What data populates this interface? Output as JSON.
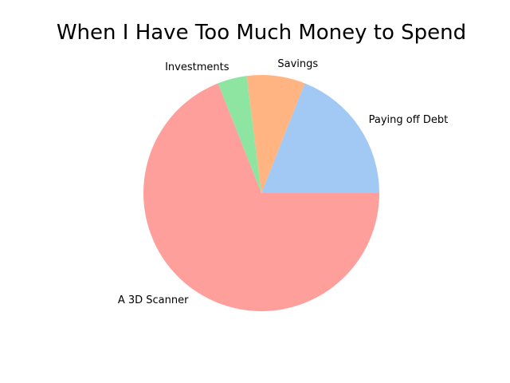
{
  "chart_data": {
    "type": "pie",
    "title": "When I Have Too Much Money to Spend",
    "start_angle_deg": 0,
    "counterclockwise": true,
    "legend": "none",
    "slices": [
      {
        "label": "Paying off Debt",
        "value": 19,
        "color": "#a1c9f4"
      },
      {
        "label": "Savings",
        "value": 8,
        "color": "#ffb482"
      },
      {
        "label": "Investments",
        "value": 4,
        "color": "#8de5a1"
      },
      {
        "label": "A 3D Scanner",
        "value": 69,
        "color": "#ff9f9b"
      }
    ]
  }
}
